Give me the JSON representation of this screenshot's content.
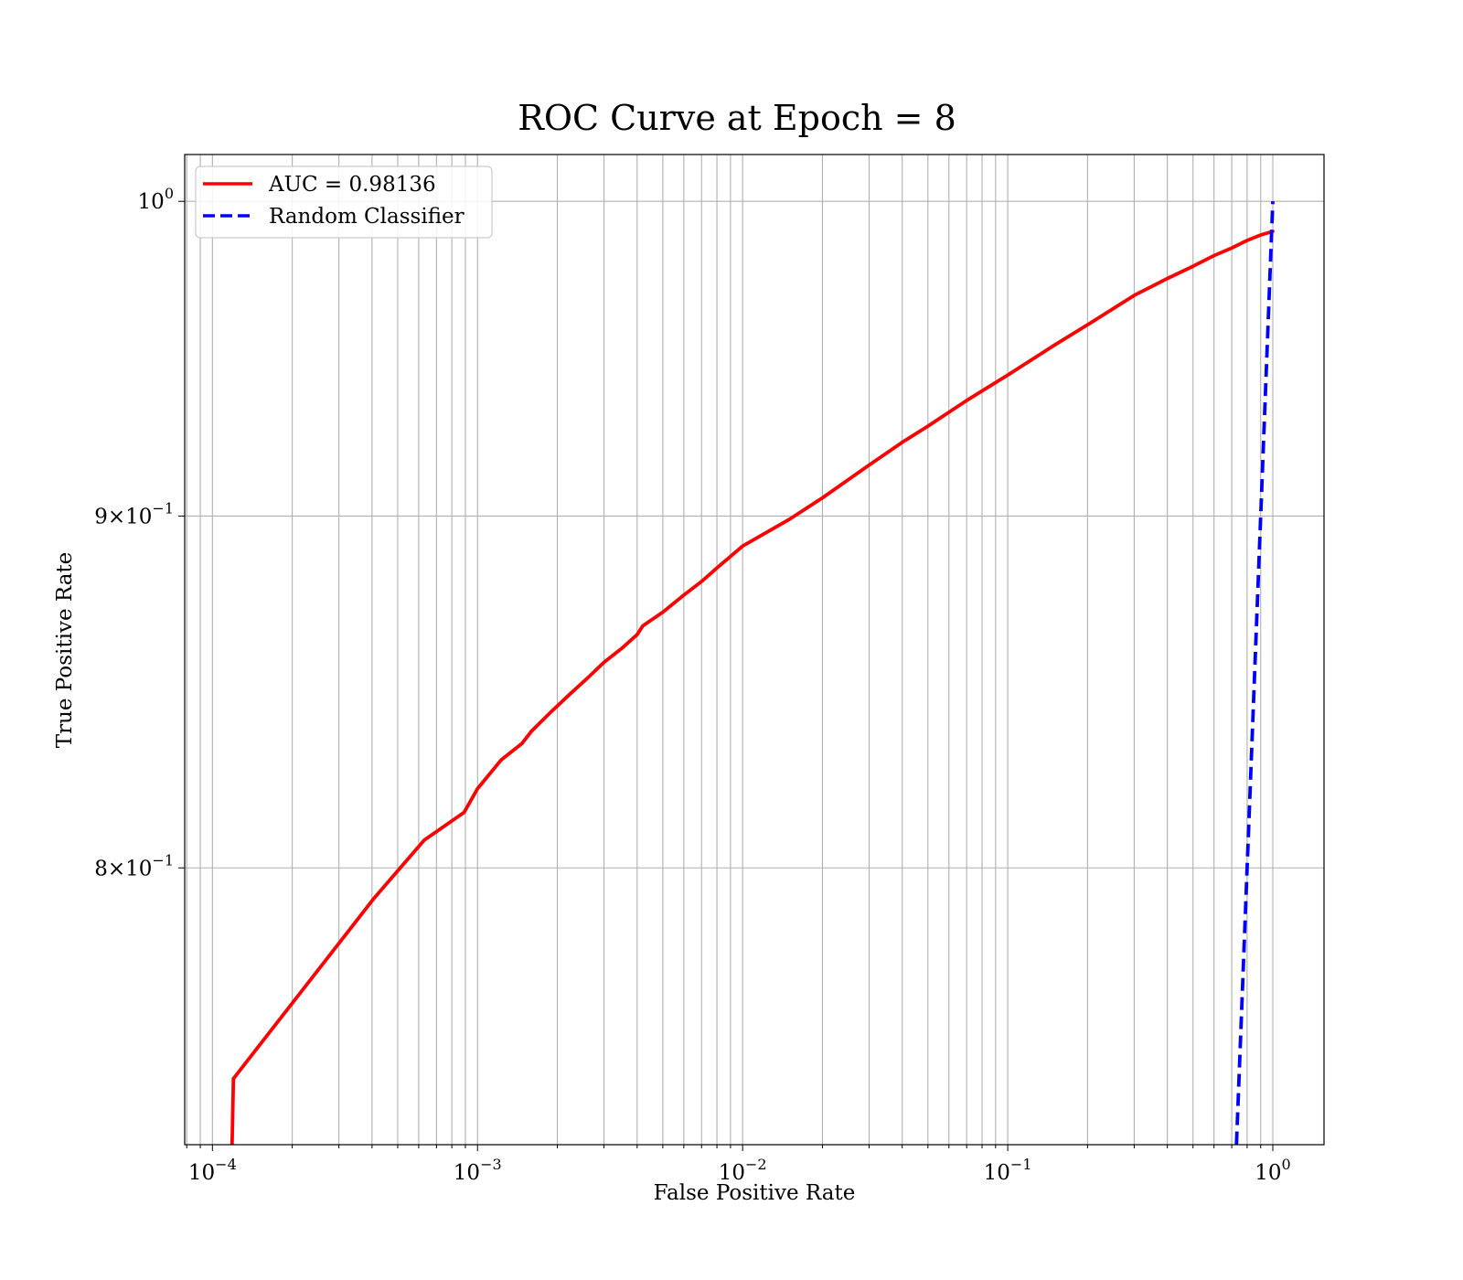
{
  "chart_data": {
    "type": "line",
    "title": "ROC Curve at Epoch = 8",
    "xlabel": "False Positive Rate",
    "ylabel": "True Positive Rate",
    "xscale": "log",
    "yscale": "log",
    "xlim": [
      7.86e-05,
      1.56
    ],
    "ylim": [
      0.7292,
      1.0158
    ],
    "grid": "major and minor",
    "legend_position": "top-left",
    "x_ticks": [
      {
        "base": "10",
        "exp": "−4"
      },
      {
        "base": "10",
        "exp": "−3"
      },
      {
        "base": "10",
        "exp": "−2"
      },
      {
        "base": "10",
        "exp": "−1"
      },
      {
        "base": "10",
        "exp": "0"
      }
    ],
    "y_ticks": [
      {
        "value": 1.0,
        "label_base": "10",
        "label_exp": "0"
      },
      {
        "value": 0.9,
        "label_base": "9×10",
        "label_exp": "−1"
      },
      {
        "value": 0.8,
        "label_base": "8×10",
        "label_exp": "−1"
      }
    ],
    "series": [
      {
        "name": "AUC = 0.98136",
        "color": "#ff0000",
        "style": "solid",
        "x": [
          0.000118,
          0.00012,
          0.000408,
          0.00063,
          0.00089,
          0.001,
          0.00123,
          0.00147,
          0.0016,
          0.0019,
          0.0022,
          0.0026,
          0.003,
          0.0035,
          0.004,
          0.0042,
          0.005,
          0.006,
          0.007,
          0.008,
          0.01,
          0.015,
          0.02,
          0.03,
          0.04,
          0.05,
          0.07,
          0.1,
          0.15,
          0.2,
          0.3,
          0.4,
          0.5,
          0.6,
          0.7,
          0.8,
          0.9,
          1.0
        ],
        "y": [
          0.722,
          0.7455,
          0.792,
          0.8075,
          0.815,
          0.8215,
          0.8295,
          0.834,
          0.8375,
          0.843,
          0.8475,
          0.8525,
          0.857,
          0.861,
          0.865,
          0.8675,
          0.8715,
          0.8765,
          0.8805,
          0.8845,
          0.891,
          0.899,
          0.9055,
          0.9155,
          0.9225,
          0.9275,
          0.9355,
          0.9435,
          0.953,
          0.9595,
          0.969,
          0.9745,
          0.9785,
          0.982,
          0.9845,
          0.987,
          0.9888,
          0.99
        ]
      },
      {
        "name": "Random Classifier",
        "color": "#0000ff",
        "style": "dashed",
        "x": [
          0.72,
          1.0
        ],
        "y": [
          0.72,
          1.0
        ]
      }
    ]
  }
}
